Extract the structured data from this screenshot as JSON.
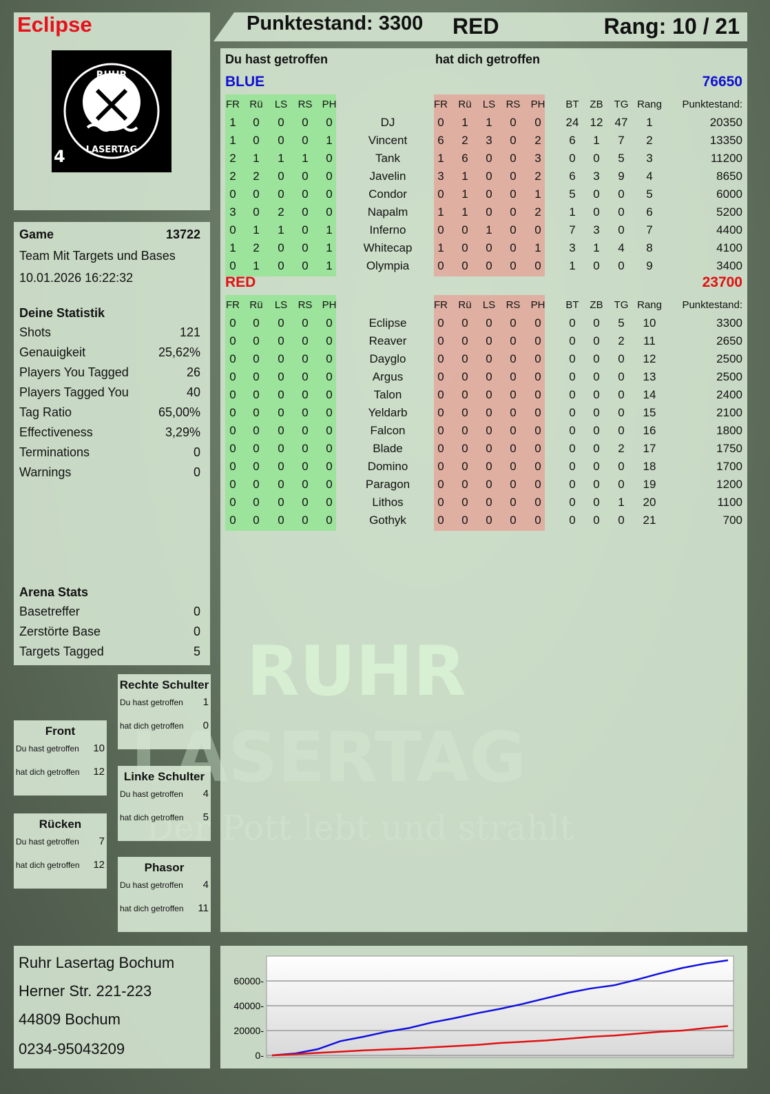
{
  "player": {
    "name": "Eclipse",
    "logo_text": "RUHR LASERTAG",
    "logo_number": "4"
  },
  "topbar": {
    "score_label": "Punktestand: 3300",
    "team": "RED",
    "rank_label": "Rang: 10 / 21"
  },
  "main": {
    "you_hit": "Du hast getroffen",
    "hit_you": "hat dich getroffen",
    "columns_hit": [
      "FR",
      "Rü",
      "LS",
      "RS",
      "PH"
    ],
    "columns_stats": [
      "BT",
      "ZB",
      "TG",
      "Rang",
      "Punktestand:"
    ],
    "teams": [
      {
        "name": "BLUE",
        "total": "76650",
        "color": "#1010d0",
        "players": [
          {
            "name": "DJ",
            "hit": [
              1,
              0,
              0,
              0,
              0
            ],
            "got": [
              0,
              1,
              1,
              0,
              0
            ],
            "stats": [
              24,
              12,
              47,
              1,
              20350
            ]
          },
          {
            "name": "Vincent",
            "hit": [
              1,
              0,
              0,
              0,
              1
            ],
            "got": [
              6,
              2,
              3,
              0,
              2
            ],
            "stats": [
              6,
              1,
              7,
              2,
              13350
            ]
          },
          {
            "name": "Tank",
            "hit": [
              2,
              1,
              1,
              1,
              0
            ],
            "got": [
              1,
              6,
              0,
              0,
              3
            ],
            "stats": [
              0,
              0,
              5,
              3,
              11200
            ]
          },
          {
            "name": "Javelin",
            "hit": [
              2,
              2,
              0,
              0,
              0
            ],
            "got": [
              3,
              1,
              0,
              0,
              2
            ],
            "stats": [
              6,
              3,
              9,
              4,
              8650
            ]
          },
          {
            "name": "Condor",
            "hit": [
              0,
              0,
              0,
              0,
              0
            ],
            "got": [
              0,
              1,
              0,
              0,
              1
            ],
            "stats": [
              5,
              0,
              0,
              5,
              6000
            ]
          },
          {
            "name": "Napalm",
            "hit": [
              3,
              0,
              2,
              0,
              0
            ],
            "got": [
              1,
              1,
              0,
              0,
              2
            ],
            "stats": [
              1,
              0,
              0,
              6,
              5200
            ]
          },
          {
            "name": "Inferno",
            "hit": [
              0,
              1,
              1,
              0,
              1
            ],
            "got": [
              0,
              0,
              1,
              0,
              0
            ],
            "stats": [
              7,
              3,
              0,
              7,
              4400
            ]
          },
          {
            "name": "Whitecap",
            "hit": [
              1,
              2,
              0,
              0,
              1
            ],
            "got": [
              1,
              0,
              0,
              0,
              1
            ],
            "stats": [
              3,
              1,
              4,
              8,
              4100
            ]
          },
          {
            "name": "Olympia",
            "hit": [
              0,
              1,
              0,
              0,
              1
            ],
            "got": [
              0,
              0,
              0,
              0,
              0
            ],
            "stats": [
              1,
              0,
              0,
              9,
              3400
            ]
          }
        ]
      },
      {
        "name": "RED",
        "total": "23700",
        "color": "#e01010",
        "players": [
          {
            "name": "Eclipse",
            "hit": [
              0,
              0,
              0,
              0,
              0
            ],
            "got": [
              0,
              0,
              0,
              0,
              0
            ],
            "stats": [
              0,
              0,
              5,
              10,
              3300
            ]
          },
          {
            "name": "Reaver",
            "hit": [
              0,
              0,
              0,
              0,
              0
            ],
            "got": [
              0,
              0,
              0,
              0,
              0
            ],
            "stats": [
              0,
              0,
              2,
              11,
              2650
            ]
          },
          {
            "name": "Dayglo",
            "hit": [
              0,
              0,
              0,
              0,
              0
            ],
            "got": [
              0,
              0,
              0,
              0,
              0
            ],
            "stats": [
              0,
              0,
              0,
              12,
              2500
            ]
          },
          {
            "name": "Argus",
            "hit": [
              0,
              0,
              0,
              0,
              0
            ],
            "got": [
              0,
              0,
              0,
              0,
              0
            ],
            "stats": [
              0,
              0,
              0,
              13,
              2500
            ]
          },
          {
            "name": "Talon",
            "hit": [
              0,
              0,
              0,
              0,
              0
            ],
            "got": [
              0,
              0,
              0,
              0,
              0
            ],
            "stats": [
              0,
              0,
              0,
              14,
              2400
            ]
          },
          {
            "name": "Yeldarb",
            "hit": [
              0,
              0,
              0,
              0,
              0
            ],
            "got": [
              0,
              0,
              0,
              0,
              0
            ],
            "stats": [
              0,
              0,
              0,
              15,
              2100
            ]
          },
          {
            "name": "Falcon",
            "hit": [
              0,
              0,
              0,
              0,
              0
            ],
            "got": [
              0,
              0,
              0,
              0,
              0
            ],
            "stats": [
              0,
              0,
              0,
              16,
              1800
            ]
          },
          {
            "name": "Blade",
            "hit": [
              0,
              0,
              0,
              0,
              0
            ],
            "got": [
              0,
              0,
              0,
              0,
              0
            ],
            "stats": [
              0,
              0,
              2,
              17,
              1750
            ]
          },
          {
            "name": "Domino",
            "hit": [
              0,
              0,
              0,
              0,
              0
            ],
            "got": [
              0,
              0,
              0,
              0,
              0
            ],
            "stats": [
              0,
              0,
              0,
              18,
              1700
            ]
          },
          {
            "name": "Paragon",
            "hit": [
              0,
              0,
              0,
              0,
              0
            ],
            "got": [
              0,
              0,
              0,
              0,
              0
            ],
            "stats": [
              0,
              0,
              0,
              19,
              1200
            ]
          },
          {
            "name": "Lithos",
            "hit": [
              0,
              0,
              0,
              0,
              0
            ],
            "got": [
              0,
              0,
              0,
              0,
              0
            ],
            "stats": [
              0,
              0,
              1,
              20,
              1100
            ]
          },
          {
            "name": "Gothyk",
            "hit": [
              0,
              0,
              0,
              0,
              0
            ],
            "got": [
              0,
              0,
              0,
              0,
              0
            ],
            "stats": [
              0,
              0,
              0,
              21,
              700
            ]
          }
        ]
      }
    ]
  },
  "game": {
    "label": "Game",
    "number": "13722",
    "mode": "Team Mit Targets und Bases",
    "datetime": "10.01.2026 16:22:32"
  },
  "stats": {
    "title": "Deine Statistik",
    "items": [
      {
        "label": "Shots",
        "value": "121"
      },
      {
        "label": "Genauigkeit",
        "value": "25,62%"
      },
      {
        "label": "Players You Tagged",
        "value": "26"
      },
      {
        "label": "Players Tagged You",
        "value": "40"
      },
      {
        "label": "Tag Ratio",
        "value": "65,00%"
      },
      {
        "label": "Effectiveness",
        "value": "3,29%"
      },
      {
        "label": "Terminations",
        "value": "0"
      },
      {
        "label": "Warnings",
        "value": "0"
      }
    ]
  },
  "arena": {
    "title": "Arena Stats",
    "items": [
      {
        "label": "Basetreffer",
        "value": "0"
      },
      {
        "label": "Zerstörte Base",
        "value": "0"
      },
      {
        "label": "Targets Tagged",
        "value": "5"
      }
    ]
  },
  "zones": [
    {
      "title": "Rechte Schulter",
      "hit_label": "Du hast getroffen",
      "hit": "1",
      "got_label": "hat dich getroffen",
      "got": "0"
    },
    {
      "title": "Front",
      "hit_label": "Du hast getroffen",
      "hit": "10",
      "got_label": "hat dich getroffen",
      "got": "12"
    },
    {
      "title": "Linke Schulter",
      "hit_label": "Du hast getroffen",
      "hit": "4",
      "got_label": "hat dich getroffen",
      "got": "5"
    },
    {
      "title": "Rücken",
      "hit_label": "Du hast getroffen",
      "hit": "7",
      "got_label": "hat dich getroffen",
      "got": "12"
    },
    {
      "title": "Phasor",
      "hit_label": "Du hast getroffen",
      "hit": "4",
      "got_label": "hat dich getroffen",
      "got": "11"
    }
  ],
  "address": {
    "line1": "Ruhr Lasertag Bochum",
    "line2": "Herner Str. 221-223",
    "line3": "44809 Bochum",
    "line4": "0234-95043209"
  },
  "watermark": {
    "line1": "RUHR",
    "line2": "LASERTAG",
    "slogan": "Der Pott lebt und strahlt"
  },
  "chart_data": {
    "type": "line",
    "ylim": [
      0,
      80000
    ],
    "yticks": [
      0,
      20000,
      40000,
      60000
    ],
    "grid": true,
    "x": [
      0,
      0.05,
      0.1,
      0.15,
      0.2,
      0.25,
      0.3,
      0.35,
      0.4,
      0.45,
      0.5,
      0.55,
      0.6,
      0.65,
      0.7,
      0.75,
      0.8,
      0.85,
      0.9,
      0.95,
      1
    ],
    "series": [
      {
        "color": "#1010e0",
        "values": [
          0,
          1500,
          5000,
          11500,
          15000,
          19000,
          22000,
          26500,
          30000,
          34000,
          37500,
          41500,
          46000,
          50500,
          54000,
          56500,
          61000,
          66000,
          70500,
          74000,
          76650
        ]
      },
      {
        "color": "#e01010",
        "values": [
          0,
          1000,
          2000,
          3000,
          4000,
          4800,
          5500,
          6500,
          7500,
          8500,
          10000,
          11000,
          12000,
          13500,
          15000,
          16000,
          17500,
          19000,
          20000,
          22000,
          23700
        ]
      }
    ]
  }
}
